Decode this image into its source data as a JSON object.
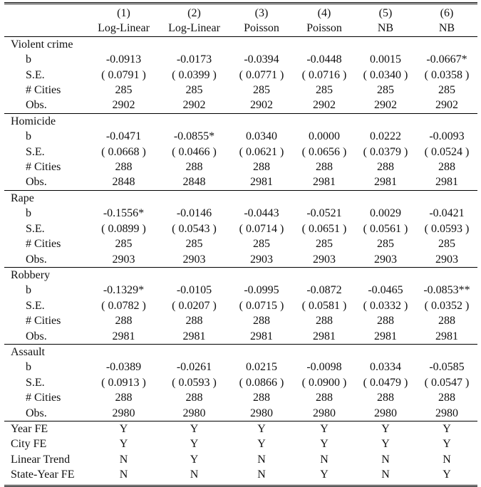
{
  "columns": [
    {
      "num": "(1)",
      "model": "Log-Linear"
    },
    {
      "num": "(2)",
      "model": "Log-Linear"
    },
    {
      "num": "(3)",
      "model": "Poisson"
    },
    {
      "num": "(4)",
      "model": "Poisson"
    },
    {
      "num": "(5)",
      "model": "NB"
    },
    {
      "num": "(6)",
      "model": "NB"
    }
  ],
  "row_labels": {
    "b": "b",
    "se": "S.E.",
    "cities": "# Cities",
    "obs": "Obs."
  },
  "sections": [
    {
      "name": "Violent crime",
      "b": [
        "-0.0913",
        "-0.0173",
        "-0.0394",
        "-0.0448",
        "0.0015",
        "-0.0667*"
      ],
      "se": [
        "( 0.0791 )",
        "( 0.0399 )",
        "( 0.0771 )",
        "( 0.0716 )",
        "( 0.0340 )",
        "( 0.0358 )"
      ],
      "cities": [
        "285",
        "285",
        "285",
        "285",
        "285",
        "285"
      ],
      "obs": [
        "2902",
        "2902",
        "2902",
        "2902",
        "2902",
        "2902"
      ]
    },
    {
      "name": "Homicide",
      "b": [
        "-0.0471",
        "-0.0855*",
        "0.0340",
        "0.0000",
        "0.0222",
        "-0.0093"
      ],
      "se": [
        "( 0.0668 )",
        "( 0.0466 )",
        "( 0.0621 )",
        "( 0.0656 )",
        "( 0.0379 )",
        "( 0.0524 )"
      ],
      "cities": [
        "288",
        "288",
        "288",
        "288",
        "288",
        "288"
      ],
      "obs": [
        "2848",
        "2848",
        "2981",
        "2981",
        "2981",
        "2981"
      ]
    },
    {
      "name": "Rape",
      "b": [
        "-0.1556*",
        "-0.0146",
        "-0.0443",
        "-0.0521",
        "0.0029",
        "-0.0421"
      ],
      "se": [
        "( 0.0899 )",
        "( 0.0543 )",
        "( 0.0714 )",
        "( 0.0651 )",
        "( 0.0561 )",
        "( 0.0593 )"
      ],
      "cities": [
        "285",
        "285",
        "285",
        "285",
        "285",
        "285"
      ],
      "obs": [
        "2903",
        "2903",
        "2903",
        "2903",
        "2903",
        "2903"
      ]
    },
    {
      "name": "Robbery",
      "b": [
        "-0.1329*",
        "-0.0105",
        "-0.0995",
        "-0.0872",
        "-0.0465",
        "-0.0853**"
      ],
      "se": [
        "( 0.0782 )",
        "( 0.0207 )",
        "( 0.0715 )",
        "( 0.0581 )",
        "( 0.0332 )",
        "( 0.0352 )"
      ],
      "cities": [
        "288",
        "288",
        "288",
        "288",
        "288",
        "288"
      ],
      "obs": [
        "2981",
        "2981",
        "2981",
        "2981",
        "2981",
        "2981"
      ]
    },
    {
      "name": "Assault",
      "b": [
        "-0.0389",
        "-0.0261",
        "0.0215",
        "-0.0098",
        "0.0334",
        "-0.0585"
      ],
      "se": [
        "( 0.0913 )",
        "( 0.0593 )",
        "( 0.0866 )",
        "( 0.0900 )",
        "( 0.0479 )",
        "( 0.0547 )"
      ],
      "cities": [
        "288",
        "288",
        "288",
        "288",
        "288",
        "288"
      ],
      "obs": [
        "2980",
        "2980",
        "2980",
        "2980",
        "2980",
        "2980"
      ]
    }
  ],
  "controls": [
    {
      "label": "Year FE",
      "values": [
        "Y",
        "Y",
        "Y",
        "Y",
        "Y",
        "Y"
      ]
    },
    {
      "label": "City FE",
      "values": [
        "Y",
        "Y",
        "Y",
        "Y",
        "Y",
        "Y"
      ]
    },
    {
      "label": "Linear Trend",
      "values": [
        "N",
        "Y",
        "N",
        "N",
        "N",
        "N"
      ]
    },
    {
      "label": "State-Year FE",
      "values": [
        "N",
        "N",
        "N",
        "Y",
        "N",
        "Y"
      ]
    }
  ]
}
